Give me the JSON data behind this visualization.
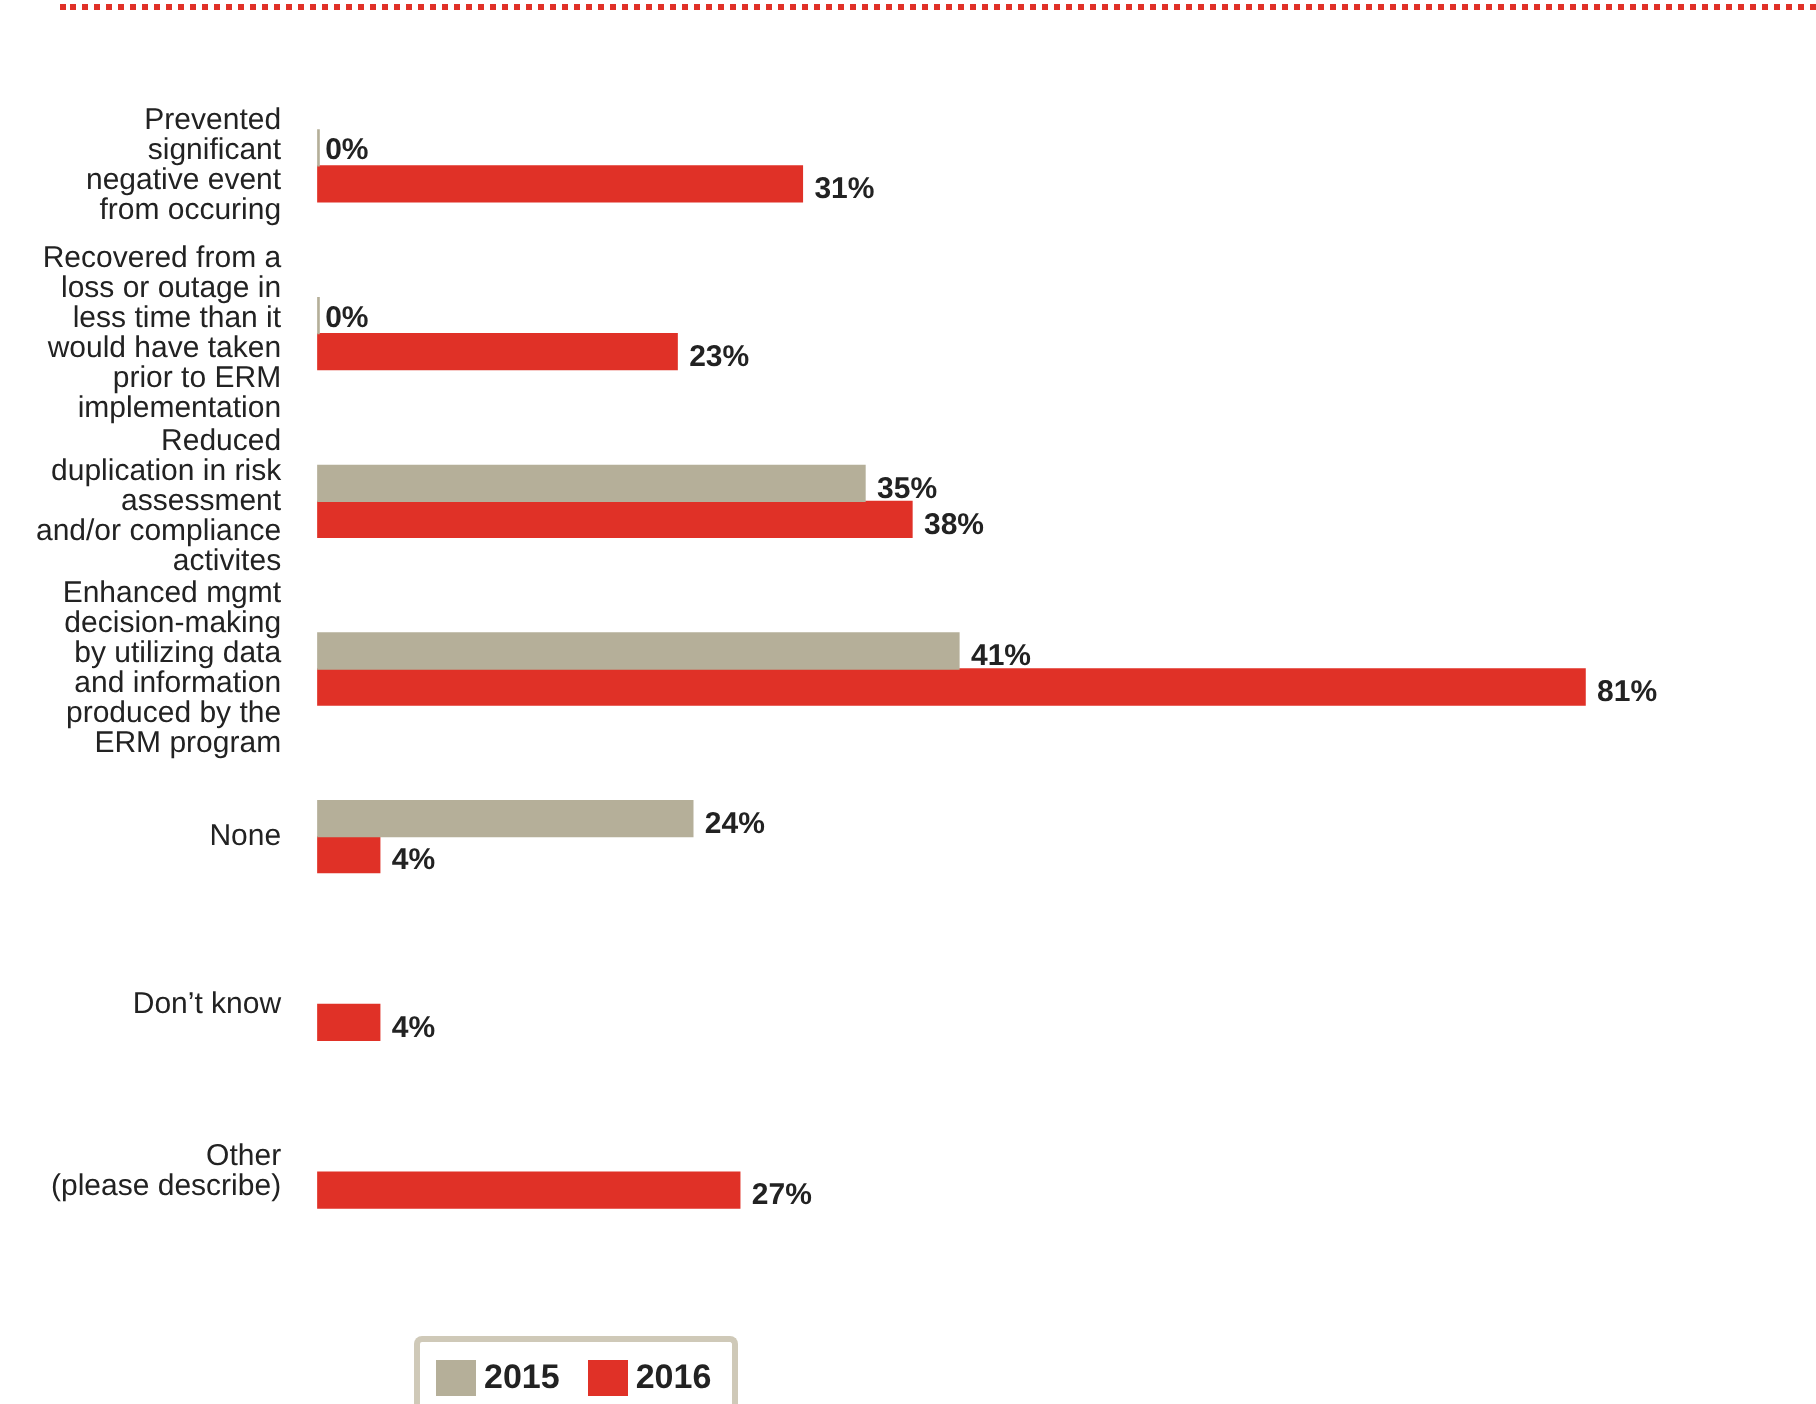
{
  "chart_data": {
    "type": "bar",
    "orientation": "horizontal",
    "categories": [
      "Prevented\nsignificant\nnegative event\nfrom occuring",
      "Recovered from a\nloss or outage in\nless time than it\nwould have taken\nprior to ERM\nimplementation",
      "Reduced\nduplication in risk\nassessment\nand/or compliance\nactivites",
      "Enhanced mgmt\ndecision-making\nby utilizing data\nand information\nproduced by the\nERM program",
      "None",
      "Don’t know",
      "Other\n(please describe)"
    ],
    "series": [
      {
        "name": "2015",
        "color": "#b5af99",
        "values": [
          0,
          0,
          35,
          41,
          24,
          null,
          null
        ],
        "value_labels": [
          "0%",
          "0%",
          "35%",
          "41%",
          "24%",
          null,
          null
        ]
      },
      {
        "name": "2016",
        "color": "#e03127",
        "values": [
          31,
          23,
          38,
          81,
          4,
          4,
          27
        ],
        "value_labels": [
          "31%",
          "23%",
          "38%",
          "81%",
          "4%",
          "4%",
          "27%"
        ]
      }
    ],
    "legend": "bottom"
  }
}
